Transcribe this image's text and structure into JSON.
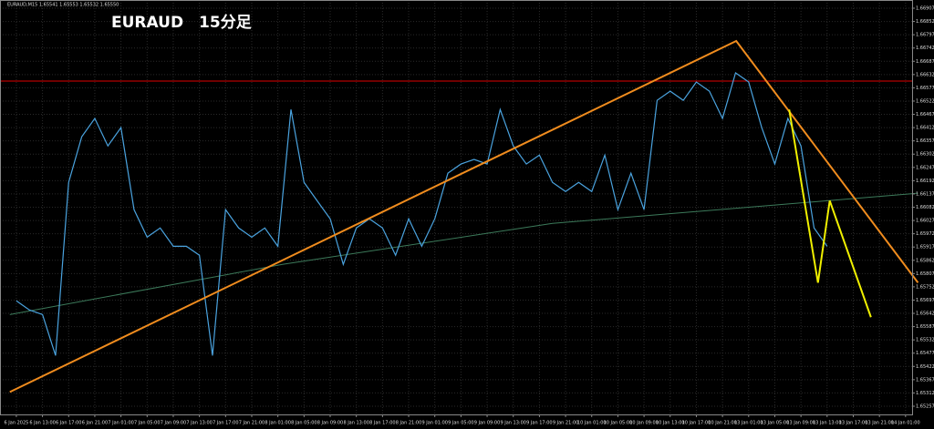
{
  "chart_data": {
    "type": "line",
    "title": "EURAUD　15分足",
    "header": "EURAUD,M15  1.65541 1.65553 1.65532 1.65550",
    "color": "#4aa3df",
    "x": [
      0,
      2,
      4,
      6,
      8,
      10,
      12,
      14,
      16,
      18,
      20,
      22,
      24,
      26,
      28,
      30,
      32,
      34,
      36,
      38,
      40,
      42,
      44,
      46,
      48,
      50,
      52,
      54,
      56,
      58,
      60,
      62,
      64,
      66,
      68,
      70,
      72,
      74,
      76,
      78,
      80,
      82,
      84,
      86,
      88,
      90,
      92,
      94,
      96,
      98,
      100,
      102,
      104,
      106,
      108,
      110,
      112,
      114,
      116,
      118,
      120,
      122,
      124
    ],
    "values": [
      1.65694,
      1.65656,
      1.65637,
      1.65467,
      1.66185,
      1.66374,
      1.6645,
      1.66336,
      1.66412,
      1.66072,
      1.65958,
      1.65996,
      1.6592,
      1.6592,
      1.65883,
      1.65467,
      1.66072,
      1.65996,
      1.65958,
      1.65996,
      1.6592,
      1.66487,
      1.66185,
      1.66109,
      1.66034,
      1.65845,
      1.65996,
      1.66034,
      1.65996,
      1.65883,
      1.66034,
      1.6592,
      1.66034,
      1.66223,
      1.66261,
      1.6628,
      1.66261,
      1.66487,
      1.66336,
      1.66261,
      1.66298,
      1.66185,
      1.66147,
      1.66185,
      1.66147,
      1.66298,
      1.66072,
      1.66223,
      1.66072,
      1.66525,
      1.66563,
      1.66525,
      1.66601,
      1.66563,
      1.6645,
      1.66639,
      1.66601,
      1.66412,
      1.66261,
      1.6645,
      1.66336,
      1.65996,
      1.6592
    ],
    "overlays": [
      {
        "color": "#f08c1e",
        "x": [
          -1,
          110.1,
          137.9
        ],
        "values": [
          1.65316,
          1.66771,
          1.65769
        ]
      },
      {
        "color": "#f0f000",
        "x": [
          118.2,
          122.6,
          124.4,
          130.7
        ],
        "values": [
          1.66487,
          1.65769,
          1.66109,
          1.65626
        ]
      },
      {
        "color": "#3c7a5a",
        "x": [
          -1,
          40.7,
          82,
          137.9
        ],
        "values": [
          1.65637,
          1.65845,
          1.66015,
          1.6614
        ]
      }
    ],
    "hlines": [
      {
        "value": 1.66605,
        "color": "#e00000"
      }
    ],
    "xlim": [
      -2.5,
      137
    ],
    "ylim": [
      1.65223,
      1.66941
    ],
    "xticks": [
      {
        "value": 0,
        "label": "6 Jan 2025"
      },
      {
        "value": 4,
        "label": "6 Jan 13:00"
      },
      {
        "value": 8,
        "label": "6 Jan 17:00"
      },
      {
        "value": 12,
        "label": "6 Jan 21:00"
      },
      {
        "value": 16,
        "label": "7 Jan 01:00"
      },
      {
        "value": 20,
        "label": "7 Jan 05:00"
      },
      {
        "value": 24,
        "label": "7 Jan 09:00"
      },
      {
        "value": 28,
        "label": "7 Jan 13:00"
      },
      {
        "value": 32,
        "label": "7 Jan 17:00"
      },
      {
        "value": 36,
        "label": "7 Jan 21:00"
      },
      {
        "value": 40,
        "label": "8 Jan 01:00"
      },
      {
        "value": 44,
        "label": "8 Jan 05:00"
      },
      {
        "value": 48,
        "label": "8 Jan 09:00"
      },
      {
        "value": 52,
        "label": "8 Jan 13:00"
      },
      {
        "value": 56,
        "label": "8 Jan 17:00"
      },
      {
        "value": 60,
        "label": "8 Jan 21:00"
      },
      {
        "value": 64,
        "label": "9 Jan 01:00"
      },
      {
        "value": 68,
        "label": "9 Jan 05:00"
      },
      {
        "value": 72,
        "label": "9 Jan 09:00"
      },
      {
        "value": 76,
        "label": "9 Jan 13:00"
      },
      {
        "value": 80,
        "label": "9 Jan 17:00"
      },
      {
        "value": 84,
        "label": "9 Jan 21:00"
      },
      {
        "value": 88,
        "label": "10 Jan 01:00"
      },
      {
        "value": 92,
        "label": "10 Jan 05:00"
      },
      {
        "value": 96,
        "label": "10 Jan 09:00"
      },
      {
        "value": 100,
        "label": "10 Jan 13:00"
      },
      {
        "value": 104,
        "label": "10 Jan 17:00"
      },
      {
        "value": 108,
        "label": "10 Jan 21:00"
      },
      {
        "value": 112,
        "label": "13 Jan 01:00"
      },
      {
        "value": 116,
        "label": "13 Jan 05:00"
      },
      {
        "value": 120,
        "label": "13 Jan 09:00"
      },
      {
        "value": 124,
        "label": "13 Jan 13:00"
      },
      {
        "value": 128,
        "label": "13 Jan 17:00"
      },
      {
        "value": 132,
        "label": "13 Jan 21:00"
      },
      {
        "value": 136,
        "label": "14 Jan 01:00"
      }
    ],
    "yticks": [
      1.66907,
      1.66852,
      1.66797,
      1.66742,
      1.66687,
      1.66632,
      1.66577,
      1.66522,
      1.66467,
      1.66412,
      1.66357,
      1.66302,
      1.66247,
      1.66192,
      1.66137,
      1.66082,
      1.66027,
      1.65972,
      1.65917,
      1.65862,
      1.65807,
      1.65752,
      1.65697,
      1.65642,
      1.65587,
      1.65532,
      1.65477,
      1.65422,
      1.65367,
      1.65312,
      1.65257
    ],
    "grid": true
  }
}
